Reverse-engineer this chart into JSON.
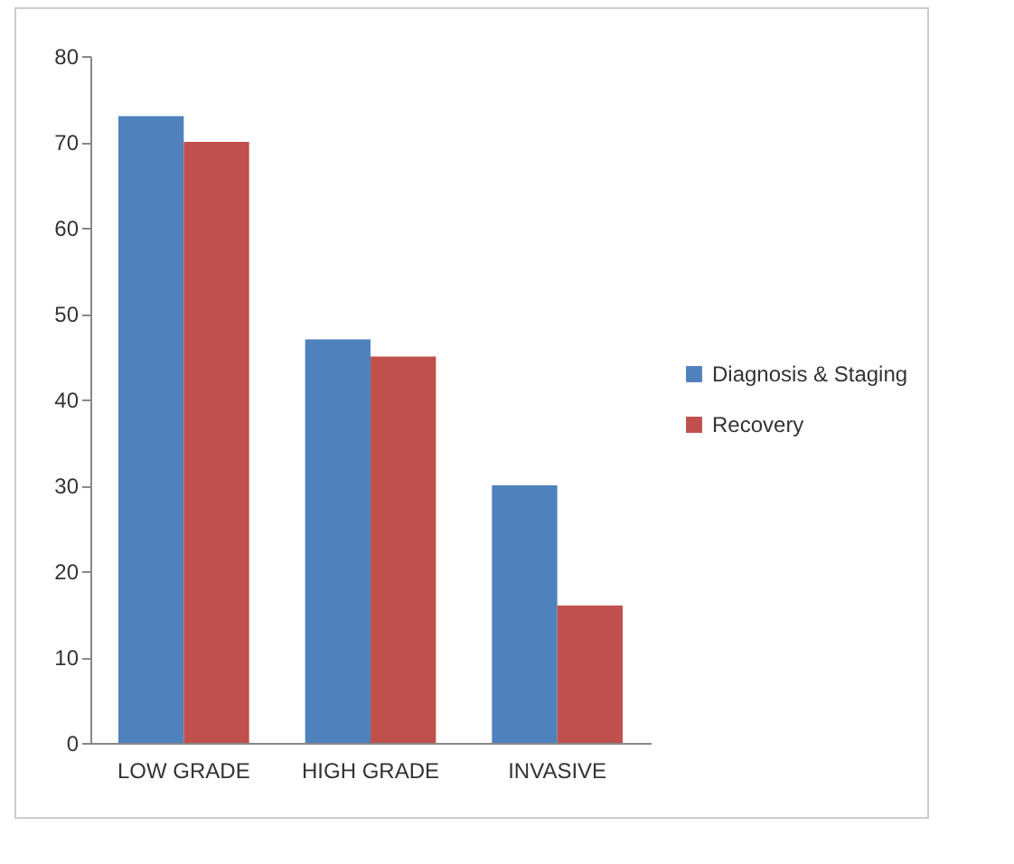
{
  "chart_data": {
    "type": "bar",
    "categories": [
      "LOW GRADE",
      "HIGH GRADE",
      "INVASIVE"
    ],
    "series": [
      {
        "name": "Diagnosis & Staging",
        "color": "#4f81bd",
        "values": [
          73,
          47,
          30
        ]
      },
      {
        "name": "Recovery",
        "color": "#c0504d",
        "values": [
          70,
          45,
          16
        ]
      }
    ],
    "ylim": [
      0,
      80
    ],
    "yticks": [
      0,
      10,
      20,
      30,
      40,
      50,
      60,
      70,
      80
    ],
    "grid": false,
    "legend": "right"
  }
}
